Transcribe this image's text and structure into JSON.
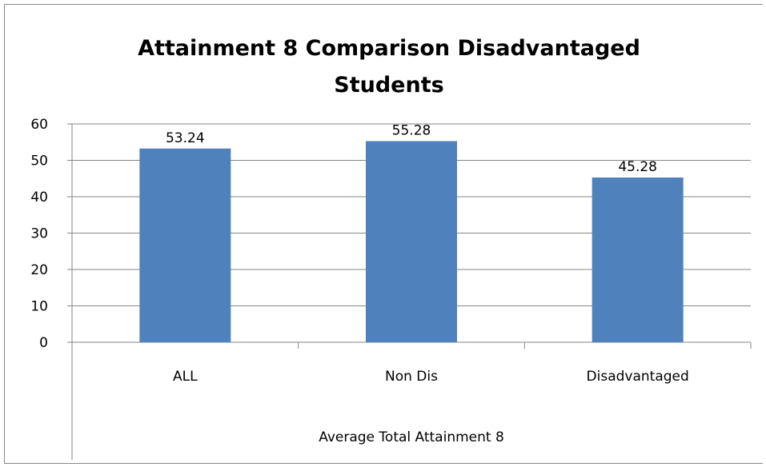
{
  "chart_data": {
    "type": "bar",
    "title": "Attainment 8 Comparison Disadvantaged Students",
    "title_lines": [
      "Attainment 8 Comparison Disadvantaged",
      "Students"
    ],
    "categories": [
      "ALL",
      "Non Dis",
      "Disadvantaged"
    ],
    "series": [
      {
        "values": [
          53.24,
          55.28,
          45.28
        ]
      }
    ],
    "data_labels": [
      "53.24",
      "55.28",
      "45.28"
    ],
    "xlabel": "Average Total Attainment 8",
    "ylabel": "",
    "ylim": [
      0,
      60
    ],
    "yticks": [
      0,
      10,
      20,
      30,
      40,
      50,
      60
    ],
    "grid": true,
    "legend": "none",
    "bar_color": "#4f81bd"
  }
}
